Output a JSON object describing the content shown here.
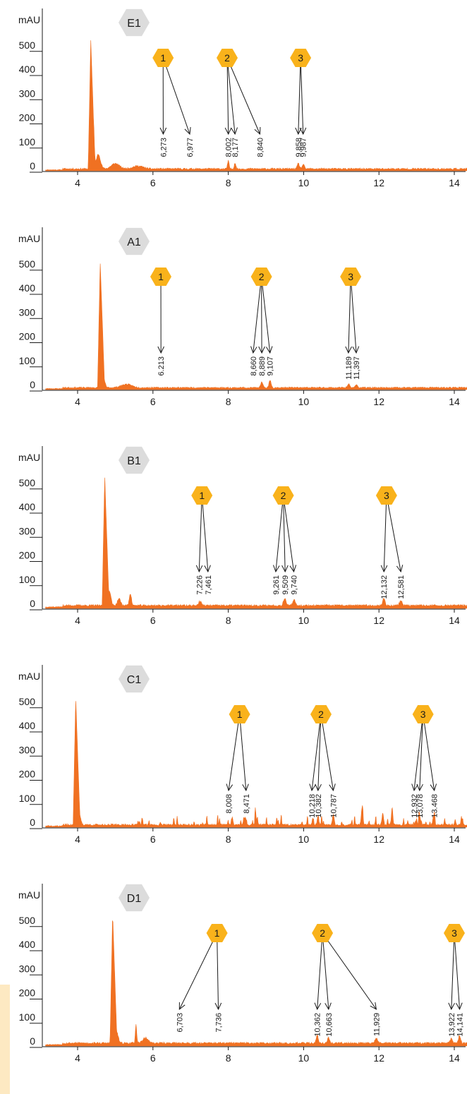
{
  "colors": {
    "trace": "#f07122",
    "badge": "#f9b21b",
    "label_hex": "#dcdcdc",
    "axis": "#1a1a1a"
  },
  "chart_data": [
    {
      "type": "area",
      "panel": "E1",
      "ylabel": "mAU",
      "yticks": [
        0,
        100,
        200,
        300,
        400,
        500
      ],
      "ylim": [
        0,
        560
      ],
      "xticks": [
        4,
        6,
        8,
        10,
        12,
        14
      ],
      "xlim": [
        3.1,
        14.4
      ],
      "baseline_level": 8,
      "noise": 7,
      "spike_count": 0,
      "seed": 11,
      "main_peak": {
        "x": 4.35,
        "y": 540
      },
      "peaks": [
        [
          4.42,
          195,
          0.03
        ],
        [
          4.55,
          60,
          0.08
        ],
        [
          5.0,
          22,
          0.15
        ],
        [
          5.6,
          12,
          0.2
        ],
        [
          8.0,
          32,
          0.03
        ],
        [
          8.18,
          25,
          0.03
        ],
        [
          9.86,
          22,
          0.04
        ],
        [
          9.99,
          18,
          0.04
        ]
      ],
      "groups": [
        {
          "id": "1",
          "badge_x": 6.27,
          "labels": [
            {
              "x": 6.273,
              "text": "6,273"
            },
            {
              "x": 6.977,
              "text": "6,977"
            }
          ]
        },
        {
          "id": "2",
          "badge_x": 7.97,
          "labels": [
            {
              "x": 8.002,
              "text": "8,002"
            },
            {
              "x": 8.177,
              "text": "8,177"
            },
            {
              "x": 8.84,
              "text": "8,840"
            }
          ]
        },
        {
          "id": "3",
          "badge_x": 9.92,
          "labels": [
            {
              "x": 9.858,
              "text": "9,858"
            },
            {
              "x": 9.987,
              "text": "9,987"
            }
          ]
        }
      ]
    },
    {
      "type": "area",
      "panel": "A1",
      "ylabel": "mAU",
      "yticks": [
        0,
        100,
        200,
        300,
        400,
        500
      ],
      "ylim": [
        0,
        560
      ],
      "xticks": [
        4,
        6,
        8,
        10,
        12,
        14
      ],
      "xlim": [
        3.1,
        14.4
      ],
      "baseline_level": 8,
      "noise": 6,
      "spike_count": 0,
      "seed": 23,
      "main_peak": {
        "x": 4.6,
        "y": 530
      },
      "peaks": [
        [
          4.7,
          30,
          0.05
        ],
        [
          5.3,
          14,
          0.2
        ],
        [
          8.89,
          22,
          0.04
        ],
        [
          9.11,
          30,
          0.04
        ],
        [
          11.19,
          16,
          0.04
        ],
        [
          11.4,
          14,
          0.04
        ]
      ],
      "groups": [
        {
          "id": "1",
          "badge_x": 6.21,
          "labels": [
            {
              "x": 6.213,
              "text": "6.213"
            }
          ]
        },
        {
          "id": "2",
          "badge_x": 8.88,
          "labels": [
            {
              "x": 8.66,
              "text": "8,660"
            },
            {
              "x": 8.889,
              "text": "8,889"
            },
            {
              "x": 9.107,
              "text": "9,107"
            }
          ]
        },
        {
          "id": "3",
          "badge_x": 11.25,
          "labels": [
            {
              "x": 11.189,
              "text": "11.189"
            },
            {
              "x": 11.397,
              "text": "11,397"
            }
          ]
        }
      ]
    },
    {
      "type": "area",
      "panel": "B1",
      "ylabel": "mAU",
      "yticks": [
        0,
        100,
        200,
        300,
        400,
        500
      ],
      "ylim": [
        0,
        560
      ],
      "xticks": [
        4,
        6,
        8,
        10,
        12,
        14
      ],
      "xlim": [
        3.1,
        14.4
      ],
      "baseline_level": 12,
      "noise": 8,
      "spike_count": 0,
      "seed": 37,
      "main_peak": {
        "x": 4.72,
        "y": 550
      },
      "peaks": [
        [
          4.85,
          60,
          0.05
        ],
        [
          5.1,
          28,
          0.06
        ],
        [
          5.4,
          50,
          0.04
        ],
        [
          7.25,
          18,
          0.05
        ],
        [
          9.5,
          30,
          0.05
        ],
        [
          9.75,
          22,
          0.05
        ],
        [
          12.13,
          32,
          0.04
        ],
        [
          12.58,
          20,
          0.05
        ]
      ],
      "groups": [
        {
          "id": "1",
          "badge_x": 7.3,
          "labels": [
            {
              "x": 7.226,
              "text": "7,226"
            },
            {
              "x": 7.461,
              "text": "7,461"
            }
          ]
        },
        {
          "id": "2",
          "badge_x": 9.46,
          "labels": [
            {
              "x": 9.261,
              "text": "9,261"
            },
            {
              "x": 9.509,
              "text": "9,509"
            },
            {
              "x": 9.74,
              "text": "9,740"
            }
          ]
        },
        {
          "id": "3",
          "badge_x": 12.2,
          "labels": [
            {
              "x": 12.132,
              "text": "12,132"
            },
            {
              "x": 12.581,
              "text": "12,581"
            }
          ]
        }
      ]
    },
    {
      "type": "area",
      "panel": "C1",
      "ylabel": "mAU",
      "yticks": [
        0,
        100,
        200,
        300,
        400,
        500
      ],
      "ylim": [
        0,
        560
      ],
      "xticks": [
        4,
        6,
        8,
        10,
        12,
        14
      ],
      "xlim": [
        3.1,
        14.4
      ],
      "baseline_level": 10,
      "noise": 8,
      "spike_count": 55,
      "seed": 41,
      "main_peak": {
        "x": 3.95,
        "y": 540
      },
      "peaks": [
        [
          4.05,
          40,
          0.05
        ],
        [
          8.1,
          30,
          0.03
        ],
        [
          8.45,
          28,
          0.03
        ],
        [
          10.38,
          30,
          0.03
        ],
        [
          10.79,
          45,
          0.03
        ],
        [
          11.55,
          65,
          0.03
        ],
        [
          12.35,
          55,
          0.03
        ],
        [
          12.1,
          45,
          0.03
        ],
        [
          13.08,
          40,
          0.03
        ],
        [
          13.45,
          38,
          0.03
        ]
      ],
      "groups": [
        {
          "id": "1",
          "badge_x": 8.3,
          "labels": [
            {
              "x": 8.008,
              "text": "8,008"
            },
            {
              "x": 8.471,
              "text": "8,471"
            }
          ]
        },
        {
          "id": "2",
          "badge_x": 10.46,
          "labels": [
            {
              "x": 10.218,
              "text": "10,218"
            },
            {
              "x": 10.382,
              "text": "10,382"
            },
            {
              "x": 10.787,
              "text": "10,787"
            }
          ]
        },
        {
          "id": "3",
          "badge_x": 13.17,
          "labels": [
            {
              "x": 12.932,
              "text": "12,932"
            },
            {
              "x": 13.078,
              "text": "13,078"
            },
            {
              "x": 13.468,
              "text": "13.468"
            }
          ]
        }
      ]
    },
    {
      "type": "area",
      "panel": "D1",
      "ylabel": "mAU",
      "yticks": [
        0,
        100,
        200,
        300,
        400,
        500
      ],
      "ylim": [
        0,
        560
      ],
      "xticks": [
        4,
        6,
        8,
        10,
        12,
        14
      ],
      "xlim": [
        3.1,
        14.4
      ],
      "baseline_level": 12,
      "noise": 8,
      "spike_count": 0,
      "seed": 53,
      "main_peak": {
        "x": 4.93,
        "y": 550
      },
      "peaks": [
        [
          5.05,
          40,
          0.05
        ],
        [
          5.55,
          75,
          0.025
        ],
        [
          5.8,
          22,
          0.1
        ],
        [
          10.36,
          32,
          0.04
        ],
        [
          10.66,
          22,
          0.04
        ],
        [
          11.93,
          20,
          0.05
        ],
        [
          13.92,
          20,
          0.04
        ],
        [
          14.14,
          30,
          0.04
        ]
      ],
      "groups": [
        {
          "id": "1",
          "badge_x": 7.7,
          "labels": [
            {
              "x": 6.703,
              "text": "6,703"
            },
            {
              "x": 7.736,
              "text": "7,736"
            }
          ]
        },
        {
          "id": "2",
          "badge_x": 10.5,
          "labels": [
            {
              "x": 10.362,
              "text": "10,362"
            },
            {
              "x": 10.663,
              "text": "10,663"
            },
            {
              "x": 11.929,
              "text": "11,929"
            }
          ]
        },
        {
          "id": "3",
          "badge_x": 14.0,
          "labels": [
            {
              "x": 13.922,
              "text": "13,922"
            },
            {
              "x": 14.141,
              "text": "14,141"
            }
          ]
        }
      ]
    }
  ]
}
